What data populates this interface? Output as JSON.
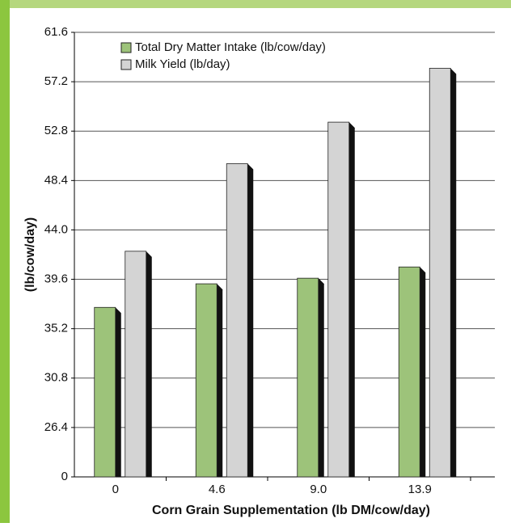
{
  "chart_data": {
    "type": "bar",
    "x_label": "Corn Grain Supplementation (lb DM/cow/day)",
    "y_label": "(lb/cow/day)",
    "categories": [
      "0",
      "4.6",
      "9.0",
      "13.9"
    ],
    "series": [
      {
        "name": "Total Dry Matter Intake (lb/cow/day)",
        "color": "#9dc37a",
        "values": [
          37.1,
          39.2,
          39.7,
          40.7
        ]
      },
      {
        "name": "Milk Yield (lb/day)",
        "color": "#d4d4d4",
        "values": [
          42.1,
          49.9,
          53.6,
          58.4
        ]
      }
    ],
    "ylim": [
      0,
      61.6
    ],
    "yticks": [
      0,
      26.4,
      30.8,
      35.2,
      39.6,
      {
        "value": 44,
        "label": "44.0"
      },
      48.4,
      52.8,
      57.2,
      61.6
    ],
    "grid": true,
    "legend": "top-left"
  }
}
